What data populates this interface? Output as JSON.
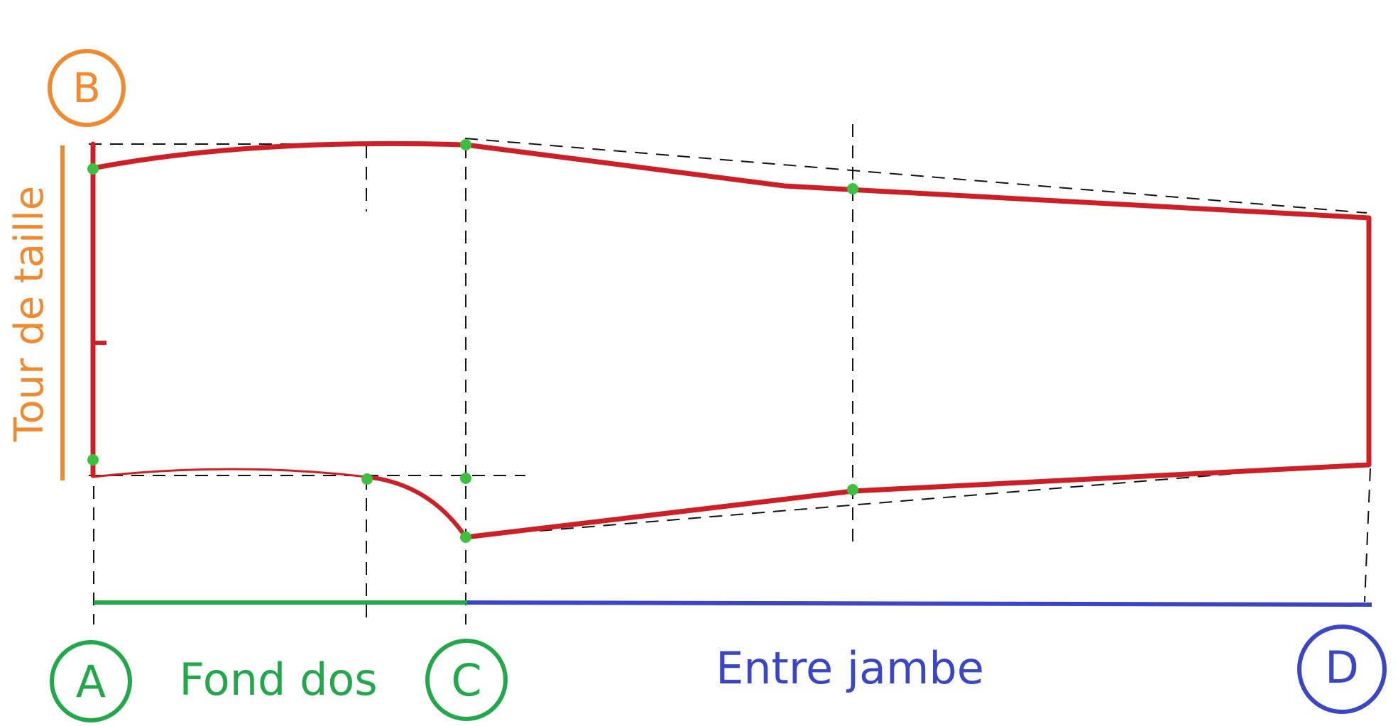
{
  "labels": {
    "B": "B",
    "A": "A",
    "C": "C",
    "D": "D",
    "waist": "Tour de taille",
    "back_rise": "Fond dos",
    "inseam": "Entre jambe"
  },
  "colors": {
    "orange": "#f08a30",
    "green": "#22a84a",
    "blue": "#3b46c4",
    "pattern_red": "#cc2026",
    "point_green": "#3fbf3f",
    "guide": "#111111"
  }
}
